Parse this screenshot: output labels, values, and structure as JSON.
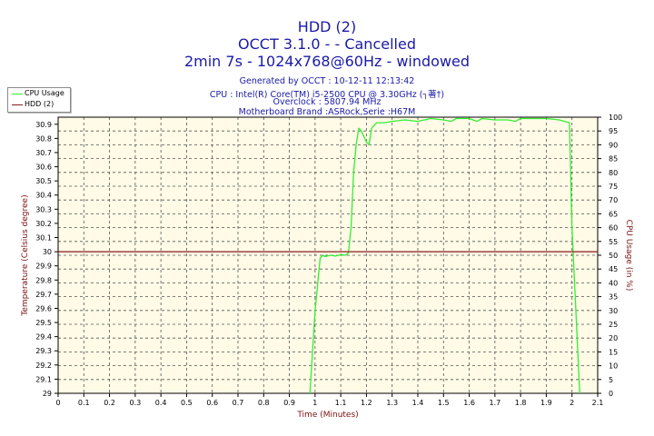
{
  "header": {
    "title": "HDD (2)",
    "subtitle": "OCCT 3.1.0 -  - Cancelled",
    "run_info": "2min 7s - 1024x768@60Hz - windowed",
    "generated": "Generated by OCCT : 10-12-11 12:13:42",
    "cpu": "CPU : Intel(R) Core(TM) i5-2500 CPU @ 3.30GHz (┐著†)",
    "overclock": "Overclock : 5807.94 MHz",
    "motherboard": "Motherboard Brand :ASRock,Serie :H67M"
  },
  "colors": {
    "cpu_usage": "#33ee33",
    "hdd": "#8b1a1a",
    "plot_bg": "#fffbe6",
    "grid": "#555555",
    "title": "#1a1aa6",
    "axis_title": "#7a1010"
  },
  "legend": {
    "items": [
      {
        "label": "CPU Usage",
        "color": "#33ee33"
      },
      {
        "label": "HDD (2)",
        "color": "#8b1a1a"
      }
    ],
    "placement": "top-left"
  },
  "chart_data": {
    "type": "line",
    "title": "HDD (2)",
    "xlabel": "Time (Minutes)",
    "ylabel_left": "Temperature (Celsius degree)",
    "ylabel_right": "CPU Usage (in %)",
    "xlim": [
      0,
      2.1
    ],
    "ylim_left": [
      29,
      30.95
    ],
    "ylim_right": [
      0,
      100
    ],
    "grid": true,
    "x_ticks": [
      "0",
      "0.1",
      "0.2",
      "0.3",
      "0.4",
      "0.5",
      "0.6",
      "0.7",
      "0.8",
      "0.9",
      "1",
      "1.1",
      "1.2",
      "1.3",
      "1.4",
      "1.5",
      "1.6",
      "1.7",
      "1.8",
      "1.9",
      "2",
      "2.1"
    ],
    "y_left_ticks": [
      "29",
      "29.1",
      "29.2",
      "29.3",
      "29.4",
      "29.5",
      "29.6",
      "29.7",
      "29.8",
      "29.9",
      "30",
      "30.1",
      "30.2",
      "30.3",
      "30.4",
      "30.5",
      "30.6",
      "30.7",
      "30.8",
      "30.9"
    ],
    "y_right_ticks": [
      "0",
      "5",
      "10",
      "15",
      "20",
      "25",
      "30",
      "35",
      "40",
      "45",
      "50",
      "55",
      "60",
      "65",
      "70",
      "75",
      "80",
      "85",
      "90",
      "95",
      "100"
    ],
    "series": [
      {
        "name": "CPU Usage",
        "axis": "right",
        "color": "#33ee33",
        "x": [
          0.98,
          1.0,
          1.02,
          1.03,
          1.04,
          1.06,
          1.08,
          1.1,
          1.12,
          1.13,
          1.14,
          1.15,
          1.16,
          1.17,
          1.18,
          1.2,
          1.21,
          1.22,
          1.24,
          1.27,
          1.3,
          1.35,
          1.4,
          1.45,
          1.5,
          1.53,
          1.55,
          1.6,
          1.63,
          1.65,
          1.7,
          1.75,
          1.78,
          1.8,
          1.85,
          1.9,
          1.95,
          1.99,
          2.0,
          2.02,
          2.03
        ],
        "y": [
          0,
          30,
          49,
          50,
          49.5,
          50,
          49.7,
          50.2,
          50,
          51,
          60,
          80,
          90,
          96,
          95,
          91,
          90,
          96,
          98,
          98,
          98.5,
          99,
          98.5,
          99.5,
          99,
          98.5,
          99.5,
          99.5,
          98.5,
          99.5,
          99,
          99,
          98.5,
          99.5,
          99.5,
          99.5,
          99,
          98,
          60,
          20,
          0
        ]
      },
      {
        "name": "HDD (2)",
        "axis": "left",
        "color": "#8b1a1a",
        "x": [
          0,
          2.1
        ],
        "y": [
          30,
          30
        ]
      }
    ]
  }
}
